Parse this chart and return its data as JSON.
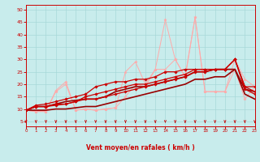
{
  "xlabel": "Vent moyen/en rafales ( km/h )",
  "bg_color": "#c8ecec",
  "grid_color": "#a8d8d8",
  "axis_color": "#cc0000",
  "text_color": "#cc0000",
  "xlim": [
    0,
    23
  ],
  "ylim": [
    3,
    52
  ],
  "yticks": [
    5,
    10,
    15,
    20,
    25,
    30,
    35,
    40,
    45,
    50
  ],
  "xticks": [
    0,
    1,
    2,
    3,
    4,
    5,
    6,
    7,
    8,
    9,
    10,
    11,
    12,
    13,
    14,
    15,
    16,
    17,
    18,
    19,
    20,
    21,
    22,
    23
  ],
  "lines": [
    {
      "x": [
        0,
        1,
        2,
        3,
        4,
        5,
        6,
        7,
        8,
        9,
        10,
        11,
        12,
        13,
        14,
        15,
        16,
        17,
        18,
        19,
        20,
        21,
        22,
        23
      ],
      "y": [
        9.5,
        11,
        11,
        12,
        12,
        13,
        14,
        14,
        15,
        16,
        17,
        18,
        19,
        20,
        21,
        22,
        23,
        25,
        25,
        26,
        26,
        30,
        19,
        19
      ],
      "color": "#cc0000",
      "marker": "D",
      "markersize": 1.8,
      "linewidth": 0.9,
      "zorder": 5
    },
    {
      "x": [
        0,
        1,
        2,
        3,
        4,
        5,
        6,
        7,
        8,
        9,
        10,
        11,
        12,
        13,
        14,
        15,
        16,
        17,
        18,
        19,
        20,
        21,
        22,
        23
      ],
      "y": [
        9.5,
        11,
        11,
        11.5,
        12,
        13,
        15,
        16,
        17,
        18,
        19,
        20,
        20,
        21,
        22,
        23,
        24,
        26,
        26,
        26,
        26,
        30,
        19,
        17
      ],
      "color": "#cc0000",
      "marker": "D",
      "markersize": 1.8,
      "linewidth": 0.9,
      "zorder": 4
    },
    {
      "x": [
        0,
        1,
        2,
        3,
        4,
        5,
        6,
        7,
        8,
        9,
        10,
        11,
        12,
        13,
        14,
        15,
        16,
        17,
        18,
        19,
        20,
        21,
        22,
        23
      ],
      "y": [
        9.5,
        11.5,
        12,
        13,
        14,
        15,
        16,
        19,
        20,
        21,
        21,
        22,
        22,
        23,
        25,
        25,
        26,
        26,
        26,
        26,
        26,
        30,
        18,
        16
      ],
      "color": "#cc0000",
      "marker": "D",
      "markersize": 1.8,
      "linewidth": 0.9,
      "zorder": 4
    },
    {
      "x": [
        0,
        1,
        2,
        3,
        4,
        5,
        6,
        7,
        8,
        9,
        10,
        11,
        12,
        13,
        14,
        15,
        16,
        17,
        18,
        19,
        20,
        21,
        22,
        23
      ],
      "y": [
        9.5,
        11,
        11,
        12,
        13,
        13.5,
        14,
        14,
        15,
        17,
        18,
        19,
        19,
        20,
        21,
        22,
        23,
        25,
        25,
        26,
        26,
        26,
        18,
        17
      ],
      "color": "#990000",
      "marker": null,
      "markersize": 0,
      "linewidth": 1.2,
      "zorder": 3
    },
    {
      "x": [
        0,
        1,
        2,
        3,
        4,
        5,
        6,
        7,
        8,
        9,
        10,
        11,
        12,
        13,
        14,
        15,
        16,
        17,
        18,
        19,
        20,
        21,
        22,
        23
      ],
      "y": [
        9.5,
        9.5,
        9.5,
        10,
        10,
        10.5,
        11,
        11,
        12,
        13,
        14,
        15,
        16,
        17,
        18,
        19,
        20,
        22,
        22,
        23,
        23,
        26,
        16,
        14
      ],
      "color": "#990000",
      "marker": null,
      "markersize": 0,
      "linewidth": 1.2,
      "zorder": 3
    },
    {
      "x": [
        0,
        1,
        2,
        3,
        4,
        5,
        6,
        7,
        8,
        9,
        10,
        11,
        12,
        13,
        14,
        15,
        16,
        17,
        18,
        19,
        20,
        21,
        22,
        23
      ],
      "y": [
        9.5,
        9,
        9,
        17.5,
        21,
        9.5,
        10,
        9.5,
        10,
        10.5,
        15,
        20,
        19,
        26,
        26,
        30,
        23,
        47,
        17,
        17,
        17,
        26,
        14,
        19
      ],
      "color": "#ffaaaa",
      "marker": "*",
      "markersize": 2.5,
      "linewidth": 0.7,
      "zorder": 2
    },
    {
      "x": [
        0,
        1,
        2,
        3,
        4,
        5,
        6,
        7,
        8,
        9,
        10,
        11,
        12,
        13,
        14,
        15,
        16,
        17,
        18,
        19,
        20,
        21,
        22,
        23
      ],
      "y": [
        9.5,
        9,
        9,
        17,
        20,
        9.5,
        10,
        9.5,
        10,
        10.5,
        25,
        29,
        20,
        26,
        46,
        30,
        23,
        47,
        17,
        17,
        17,
        30,
        22,
        19
      ],
      "color": "#ffaaaa",
      "marker": "*",
      "markersize": 2.5,
      "linewidth": 0.7,
      "zorder": 2
    }
  ]
}
